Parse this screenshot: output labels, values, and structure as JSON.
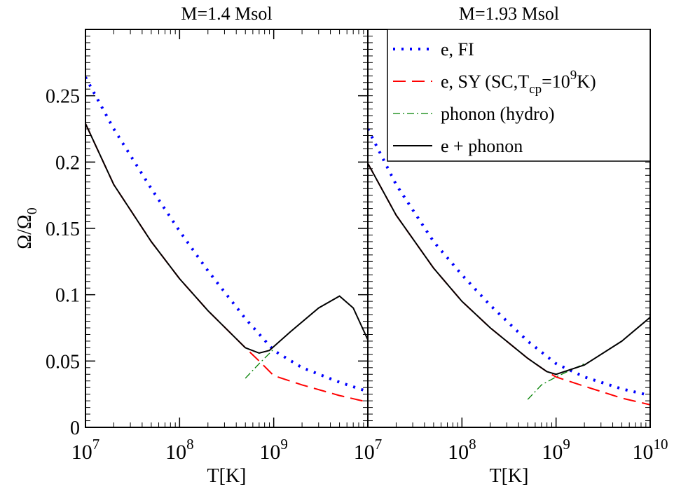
{
  "chart_data": [
    {
      "type": "line",
      "title": "M=1.4 Msol",
      "xlabel": "T[K]",
      "ylabel": "Ω/Ω",
      "ylabel_sub": "0",
      "xscale": "log",
      "xlim": [
        10000000,
        10000000000
      ],
      "ylim": [
        0,
        0.3
      ],
      "xticks": [
        {
          "value": 10000000,
          "label": "10",
          "exponent": "7"
        },
        {
          "value": 100000000,
          "label": "10",
          "exponent": "8"
        },
        {
          "value": 1000000000,
          "label": "10",
          "exponent": "9"
        }
      ],
      "yticks": [
        0,
        0.05,
        0.1,
        0.15,
        0.2,
        0.25
      ],
      "series": [
        {
          "color": "#0000ff",
          "style": "dotted",
          "x": [
            10000000,
            20000000,
            50000000,
            100000000,
            200000000,
            500000000,
            1000000000,
            2000000000,
            5000000000,
            10000000000
          ],
          "values": [
            0.264,
            0.225,
            0.18,
            0.148,
            0.118,
            0.082,
            0.058,
            0.045,
            0.034,
            0.027
          ]
        },
        {
          "color": "#ff0000",
          "style": "dashed",
          "x": [
            10000000,
            20000000,
            50000000,
            100000000,
            200000000,
            500000000,
            700000000,
            1000000000,
            2000000000,
            5000000000,
            10000000000
          ],
          "values": [
            0.229,
            0.183,
            0.14,
            0.112,
            0.088,
            0.06,
            0.05,
            0.039,
            0.032,
            0.024,
            0.019
          ]
        },
        {
          "color": "#008000",
          "style": "dashdot",
          "x": [
            500000000,
            700000000,
            1000000000
          ],
          "values": [
            0.037,
            0.048,
            0.059
          ]
        },
        {
          "color": "#000000",
          "style": "solid",
          "x": [
            10000000,
            20000000,
            50000000,
            100000000,
            200000000,
            500000000,
            700000000,
            900000000,
            1500000000,
            3000000000,
            5000000000,
            7000000000,
            10000000000
          ],
          "values": [
            0.229,
            0.183,
            0.14,
            0.112,
            0.088,
            0.06,
            0.056,
            0.058,
            0.072,
            0.09,
            0.099,
            0.09,
            0.066
          ]
        }
      ]
    },
    {
      "type": "line",
      "title": "M=1.93 Msol",
      "xlabel": "T[K]",
      "xscale": "log",
      "xlim": [
        10000000,
        10000000000
      ],
      "ylim": [
        0,
        0.3
      ],
      "xticks": [
        {
          "value": 10000000,
          "label": "10",
          "exponent": "7"
        },
        {
          "value": 100000000,
          "label": "10",
          "exponent": "8"
        },
        {
          "value": 1000000000,
          "label": "10",
          "exponent": "9"
        },
        {
          "value": 10000000000,
          "label": "10",
          "exponent": "10"
        }
      ],
      "legend": "upper right",
      "series": [
        {
          "name": "e, FI",
          "color": "#0000ff",
          "style": "dotted",
          "x": [
            10000000,
            20000000,
            50000000,
            100000000,
            200000000,
            500000000,
            1000000000,
            2000000000,
            5000000000,
            10000000000
          ],
          "values": [
            0.225,
            0.183,
            0.14,
            0.115,
            0.092,
            0.065,
            0.048,
            0.038,
            0.029,
            0.024
          ]
        },
        {
          "name_parts": [
            {
              "text": "e, SY (SC,T"
            },
            {
              "text": "cp",
              "shift": "sub"
            },
            {
              "text": "=10"
            },
            {
              "text": "9",
              "shift": "sup"
            },
            {
              "text": "K)"
            }
          ],
          "color": "#ff0000",
          "style": "dashed",
          "x": [
            10000000,
            20000000,
            50000000,
            100000000,
            200000000,
            500000000,
            800000000,
            1000000000,
            2000000000,
            5000000000,
            10000000000
          ],
          "values": [
            0.199,
            0.16,
            0.12,
            0.095,
            0.075,
            0.052,
            0.042,
            0.038,
            0.031,
            0.022,
            0.017
          ]
        },
        {
          "name": "phonon (hydro)",
          "color": "#008000",
          "style": "dashdot",
          "x": [
            500000000,
            700000000,
            1000000000,
            2000000000
          ],
          "values": [
            0.021,
            0.032,
            0.038,
            0.048
          ]
        },
        {
          "name": "e + phonon",
          "color": "#000000",
          "style": "solid",
          "x": [
            10000000,
            20000000,
            50000000,
            100000000,
            200000000,
            500000000,
            800000000,
            1000000000,
            2000000000,
            5000000000,
            10000000000
          ],
          "values": [
            0.199,
            0.16,
            0.12,
            0.095,
            0.075,
            0.052,
            0.042,
            0.04,
            0.047,
            0.065,
            0.083
          ]
        }
      ]
    }
  ]
}
